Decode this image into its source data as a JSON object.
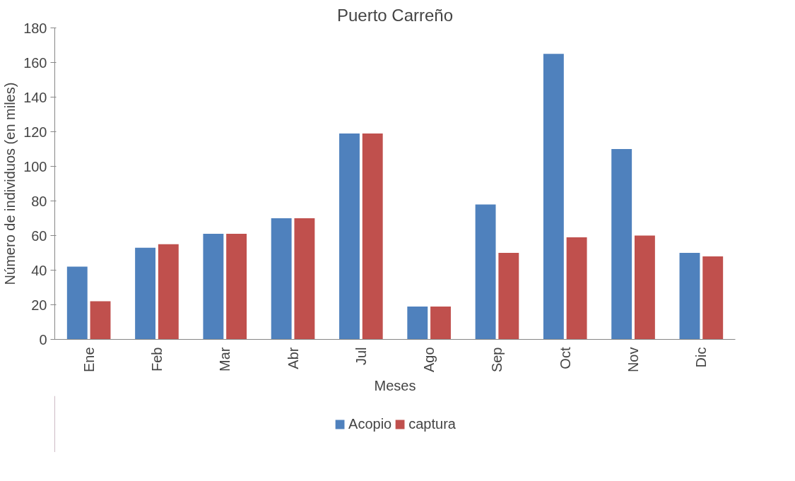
{
  "chart_data": {
    "type": "bar",
    "title": "Puerto Carreño",
    "xlabel": "Meses",
    "ylabel": "Número de individuos (en miles)",
    "categories": [
      "Ene",
      "Feb",
      "Mar",
      "Abr",
      "Jul",
      "Ago",
      "Sep",
      "Oct",
      "Nov",
      "Dic"
    ],
    "series": [
      {
        "name": "Acopio",
        "color": "#4f81bd",
        "values": [
          42,
          53,
          61,
          70,
          119,
          19,
          78,
          165,
          110,
          50
        ]
      },
      {
        "name": "captura",
        "color": "#c0504d",
        "values": [
          22,
          55,
          61,
          70,
          119,
          19,
          50,
          59,
          60,
          48
        ]
      }
    ],
    "ylim": [
      0,
      180
    ],
    "yticks": [
      0,
      20,
      40,
      60,
      80,
      100,
      120,
      140,
      160,
      180
    ],
    "grid": false,
    "legend": "bottom"
  }
}
